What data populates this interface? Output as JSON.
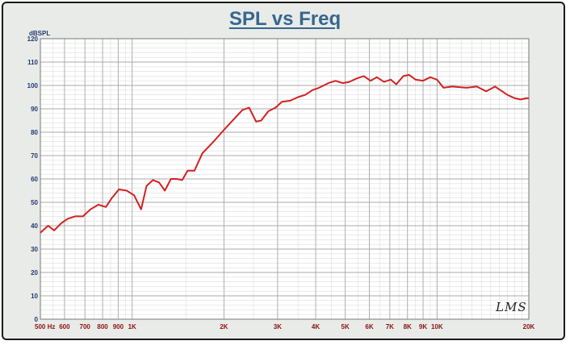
{
  "chart_data": {
    "type": "line",
    "title": "SPL vs Freq",
    "ylabel": "dBSPL",
    "xlabel": "",
    "x_scale": "log",
    "xlim": [
      500,
      20000
    ],
    "ylim": [
      0,
      120
    ],
    "y_ticks": [
      0,
      10,
      20,
      30,
      40,
      50,
      60,
      70,
      80,
      90,
      100,
      110,
      120
    ],
    "x_ticks": [
      {
        "value": 500,
        "label": "500 Hz"
      },
      {
        "value": 600,
        "label": "600"
      },
      {
        "value": 700,
        "label": "700"
      },
      {
        "value": 800,
        "label": "800"
      },
      {
        "value": 900,
        "label": "900"
      },
      {
        "value": 1000,
        "label": "1K"
      },
      {
        "value": 2000,
        "label": "2K"
      },
      {
        "value": 3000,
        "label": "3K"
      },
      {
        "value": 4000,
        "label": "4K"
      },
      {
        "value": 5000,
        "label": "5K"
      },
      {
        "value": 6000,
        "label": "6K"
      },
      {
        "value": 7000,
        "label": "7K"
      },
      {
        "value": 8000,
        "label": "8K"
      },
      {
        "value": 9000,
        "label": "9K"
      },
      {
        "value": 10000,
        "label": "10K"
      },
      {
        "value": 20000,
        "label": "20K"
      }
    ],
    "grid": true,
    "series": [
      {
        "name": "SPL",
        "color": "#d42020",
        "x": [
          500,
          530,
          555,
          585,
          615,
          650,
          690,
          730,
          775,
          820,
          860,
          905,
          960,
          1015,
          1070,
          1115,
          1170,
          1225,
          1280,
          1340,
          1400,
          1460,
          1520,
          1600,
          1700,
          1850,
          2000,
          2100,
          2300,
          2420,
          2550,
          2650,
          2800,
          2950,
          3100,
          3300,
          3500,
          3700,
          3900,
          4100,
          4400,
          4650,
          4900,
          5150,
          5450,
          5750,
          6050,
          6350,
          6700,
          7050,
          7350,
          7750,
          8100,
          8500,
          9000,
          9500,
          10000,
          10500,
          11200,
          12500,
          13500,
          14500,
          15500,
          17000,
          18000,
          18800,
          19600,
          20000
        ],
        "values": [
          37,
          40,
          38,
          41,
          43,
          44,
          44,
          47,
          49,
          48,
          52,
          55.5,
          55,
          53,
          47,
          57,
          59.5,
          58.5,
          55,
          60,
          60,
          59.5,
          63.5,
          63.5,
          71,
          76,
          81,
          84,
          89.5,
          90.5,
          84.5,
          85,
          89,
          90.5,
          93,
          93.5,
          95,
          96,
          98,
          99,
          101,
          102,
          101,
          101.5,
          103,
          104,
          102,
          103.5,
          101.5,
          102.5,
          100.5,
          104,
          104.5,
          102.5,
          102,
          103.5,
          102.5,
          99,
          99.5,
          99,
          99.5,
          97.5,
          99.5,
          96,
          94.5,
          94,
          94.5,
          94.5
        ]
      }
    ],
    "watermark": "LMS"
  }
}
